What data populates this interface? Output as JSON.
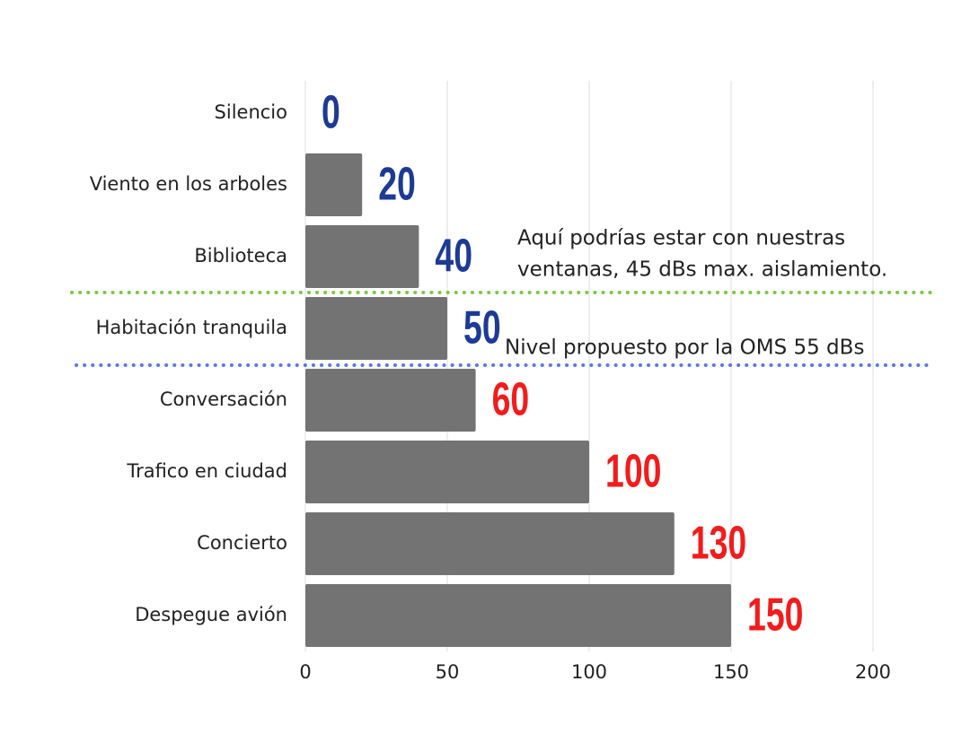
{
  "chart_data": {
    "type": "bar",
    "orientation": "horizontal",
    "categories": [
      "Silencio",
      "Viento en los arboles",
      "Biblioteca",
      "Habitación tranquila",
      "Conversación",
      "Trafico en ciudad",
      "Concierto",
      "Despegue avión"
    ],
    "values": [
      0,
      20,
      40,
      50,
      60,
      100,
      130,
      150
    ],
    "color": "#737373",
    "value_label_colors": [
      "#1c3a96",
      "#1c3a96",
      "#1c3a96",
      "#1c3a96",
      "#f21c1c",
      "#f21c1c",
      "#f21c1c",
      "#f21c1c"
    ],
    "xlim": [
      0,
      200
    ],
    "xticks": [
      0,
      50,
      100,
      150,
      200
    ],
    "grid": true,
    "annotations": [
      {
        "lines": [
          "Aquí podrías estar con nuestras",
          "ventanas, 45 dBs max. aislamiento."
        ],
        "color": "#7ac943"
      },
      {
        "lines": [
          "Nivel propuesto por la OMS 55 dBs"
        ],
        "color": "#5a78f0"
      }
    ]
  }
}
